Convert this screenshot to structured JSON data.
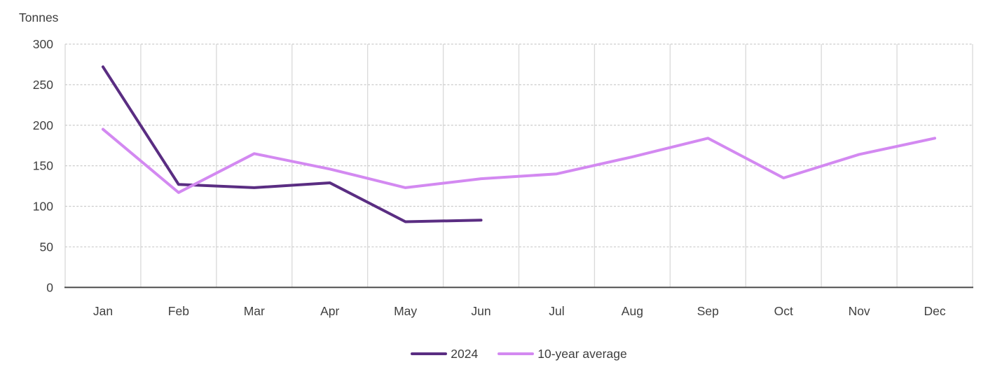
{
  "chart_data": {
    "type": "line",
    "title": "",
    "xlabel": "",
    "ylabel": "Tonnes",
    "categories": [
      "Jan",
      "Feb",
      "Mar",
      "Apr",
      "May",
      "Jun",
      "Jul",
      "Aug",
      "Sep",
      "Oct",
      "Nov",
      "Dec"
    ],
    "series": [
      {
        "name": "2024",
        "color": "#5a2d82",
        "values": [
          272,
          127,
          123,
          129,
          81,
          83
        ]
      },
      {
        "name": "10-year average",
        "color": "#d389f1",
        "values": [
          195,
          117,
          165,
          146,
          123,
          134,
          140,
          161,
          184,
          135,
          164,
          184
        ]
      }
    ],
    "ylim": [
      0,
      300
    ],
    "ytick_step": 50,
    "yticks": [
      0,
      50,
      100,
      150,
      200,
      250,
      300
    ],
    "grid": {
      "horizontal": "dashed",
      "vertical": "solid"
    },
    "legend_position": "bottom-center"
  },
  "legend": {
    "items": [
      {
        "label": "2024",
        "color": "#5a2d82"
      },
      {
        "label": "10-year average",
        "color": "#d389f1"
      }
    ]
  },
  "colors": {
    "grid_vertical": "#d9d9d9",
    "grid_horizontal": "#cccccc",
    "axis_line": "#4f4f4f",
    "text": "#404040",
    "background": "#ffffff"
  }
}
